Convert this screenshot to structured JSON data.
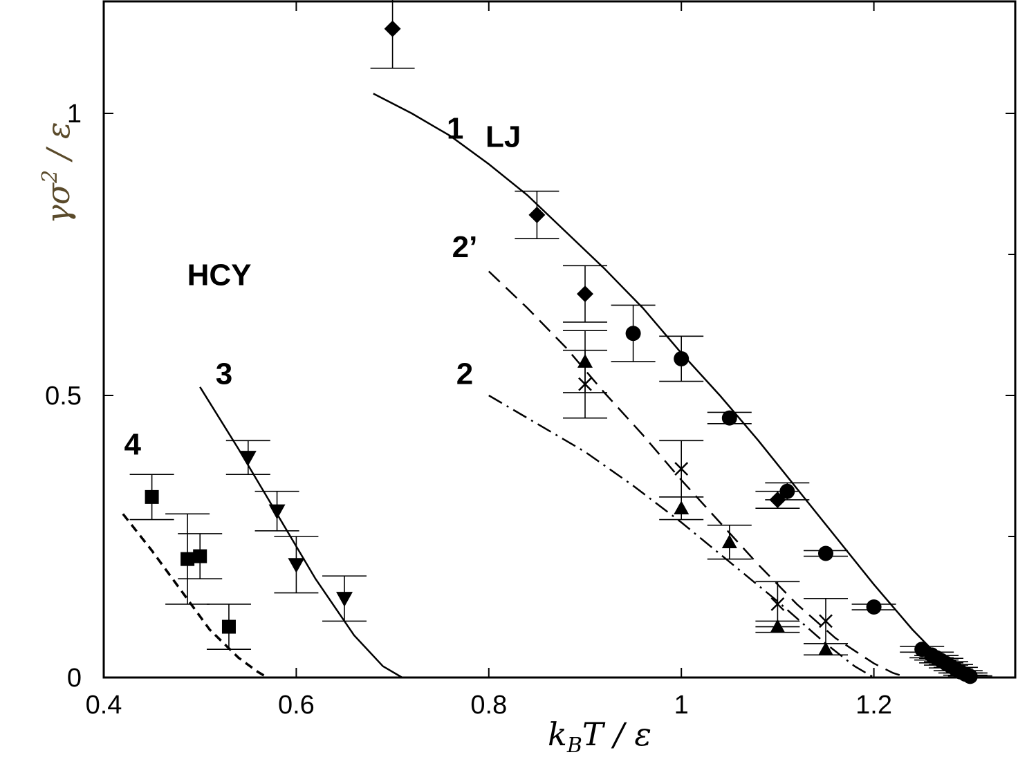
{
  "chart_data": {
    "type": "scatter",
    "title": "",
    "xlabel": "k_B T / ε",
    "ylabel": "γσ² / ε",
    "xlim": [
      0.4,
      1.34
    ],
    "ylim": [
      0,
      1.2
    ],
    "xticks": [
      {
        "value": 0.4,
        "label": "0.4"
      },
      {
        "value": 0.6,
        "label": "0.6"
      },
      {
        "value": 0.8,
        "label": "0.8"
      },
      {
        "value": 1.0,
        "label": "1"
      },
      {
        "value": 1.2,
        "label": "1.2"
      }
    ],
    "yticks": [
      {
        "value": 0,
        "label": "0"
      },
      {
        "value": 0.5,
        "label": "0.5"
      },
      {
        "value": 1.0,
        "label": "1"
      }
    ],
    "ylabel_color": "#5a4a2a",
    "grid": false,
    "annotations": [
      {
        "text": "LJ",
        "x": 0.815,
        "y": 0.96
      },
      {
        "text": "HCY",
        "x": 0.52,
        "y": 0.715
      },
      {
        "text": "1",
        "x": 0.765,
        "y": 0.975
      },
      {
        "text": "2’",
        "x": 0.775,
        "y": 0.765
      },
      {
        "text": "2",
        "x": 0.775,
        "y": 0.54
      },
      {
        "text": "3",
        "x": 0.525,
        "y": 0.54
      },
      {
        "text": "4",
        "x": 0.43,
        "y": 0.415
      }
    ],
    "lines": [
      {
        "id": "curve-1",
        "style": "solid",
        "x": [
          0.68,
          0.72,
          0.76,
          0.8,
          0.84,
          0.88,
          0.92,
          0.96,
          1.0,
          1.04,
          1.08,
          1.12,
          1.16,
          1.2,
          1.24,
          1.26,
          1.28,
          1.3
        ],
        "y": [
          1.035,
          1.0,
          0.96,
          0.91,
          0.855,
          0.79,
          0.725,
          0.655,
          0.575,
          0.5,
          0.42,
          0.335,
          0.25,
          0.165,
          0.085,
          0.05,
          0.02,
          0.0
        ]
      },
      {
        "id": "curve-2prime",
        "style": "dashed",
        "x": [
          0.8,
          0.84,
          0.88,
          0.92,
          0.96,
          1.0,
          1.04,
          1.08,
          1.12,
          1.16,
          1.2,
          1.22,
          1.235
        ],
        "y": [
          0.72,
          0.655,
          0.585,
          0.505,
          0.43,
          0.35,
          0.275,
          0.2,
          0.13,
          0.07,
          0.025,
          0.008,
          0.0
        ]
      },
      {
        "id": "curve-2",
        "style": "dashdot",
        "x": [
          0.8,
          0.85,
          0.9,
          0.95,
          1.0,
          1.05,
          1.1,
          1.15,
          1.18,
          1.2
        ],
        "y": [
          0.5,
          0.45,
          0.4,
          0.34,
          0.275,
          0.205,
          0.135,
          0.06,
          0.02,
          0.0
        ]
      },
      {
        "id": "curve-3",
        "style": "solid",
        "x": [
          0.5,
          0.54,
          0.58,
          0.62,
          0.66,
          0.69,
          0.71
        ],
        "y": [
          0.515,
          0.405,
          0.29,
          0.175,
          0.075,
          0.02,
          0.0
        ]
      },
      {
        "id": "curve-4",
        "style": "short-dashed",
        "x": [
          0.42,
          0.45,
          0.48,
          0.51,
          0.54,
          0.56,
          0.57
        ],
        "y": [
          0.29,
          0.225,
          0.155,
          0.085,
          0.035,
          0.01,
          0.0
        ]
      }
    ],
    "series": [
      {
        "marker": "diamond",
        "points": [
          {
            "x": 0.7,
            "y": 1.15,
            "err": 0.07
          },
          {
            "x": 0.85,
            "y": 0.82,
            "err": 0.042
          },
          {
            "x": 0.9,
            "y": 0.68,
            "err": 0.05
          },
          {
            "x": 1.1,
            "y": 0.315,
            "err": 0.015
          }
        ]
      },
      {
        "marker": "circle",
        "points": [
          {
            "x": 0.95,
            "y": 0.61,
            "err": 0.05
          },
          {
            "x": 1.0,
            "y": 0.565,
            "err": 0.04
          },
          {
            "x": 1.05,
            "y": 0.46,
            "err": 0.01
          },
          {
            "x": 1.11,
            "y": 0.33,
            "err": 0.015
          },
          {
            "x": 1.15,
            "y": 0.22,
            "err": 0.005
          },
          {
            "x": 1.2,
            "y": 0.125,
            "err": 0.005
          },
          {
            "x": 1.25,
            "y": 0.05,
            "err": 0.005
          },
          {
            "x": 1.26,
            "y": 0.04,
            "err": 0.005
          },
          {
            "x": 1.265,
            "y": 0.035,
            "err": 0.004
          },
          {
            "x": 1.27,
            "y": 0.03,
            "err": 0.004
          },
          {
            "x": 1.275,
            "y": 0.025,
            "err": 0.003
          },
          {
            "x": 1.28,
            "y": 0.02,
            "err": 0.003
          },
          {
            "x": 1.285,
            "y": 0.015,
            "err": 0.003
          },
          {
            "x": 1.29,
            "y": 0.01,
            "err": 0.002
          },
          {
            "x": 1.295,
            "y": 0.006,
            "err": 0.002
          },
          {
            "x": 1.3,
            "y": 0.002,
            "err": 0.001
          }
        ]
      },
      {
        "marker": "triangle-up",
        "points": [
          {
            "x": 0.9,
            "y": 0.56,
            "err": 0.055
          },
          {
            "x": 1.0,
            "y": 0.3,
            "err": 0.02
          },
          {
            "x": 1.05,
            "y": 0.24,
            "err": 0.03
          },
          {
            "x": 1.1,
            "y": 0.09,
            "err": 0.01
          },
          {
            "x": 1.15,
            "y": 0.05,
            "err": 0.01
          }
        ]
      },
      {
        "marker": "cross",
        "points": [
          {
            "x": 0.9,
            "y": 0.52,
            "err": 0.06
          },
          {
            "x": 1.0,
            "y": 0.37,
            "err": 0.05
          },
          {
            "x": 1.1,
            "y": 0.13,
            "err": 0.04
          },
          {
            "x": 1.15,
            "y": 0.1,
            "err": 0.04
          }
        ]
      },
      {
        "marker": "triangle-down",
        "points": [
          {
            "x": 0.55,
            "y": 0.39,
            "err": 0.03
          },
          {
            "x": 0.58,
            "y": 0.295,
            "err": 0.035
          },
          {
            "x": 0.6,
            "y": 0.2,
            "err": 0.05
          },
          {
            "x": 0.65,
            "y": 0.14,
            "err": 0.04
          }
        ]
      },
      {
        "marker": "square",
        "points": [
          {
            "x": 0.45,
            "y": 0.32,
            "err": 0.04
          },
          {
            "x": 0.487,
            "y": 0.21,
            "err": 0.08
          },
          {
            "x": 0.5,
            "y": 0.215,
            "err": 0.04
          },
          {
            "x": 0.53,
            "y": 0.09,
            "err": 0.04
          }
        ]
      }
    ]
  }
}
